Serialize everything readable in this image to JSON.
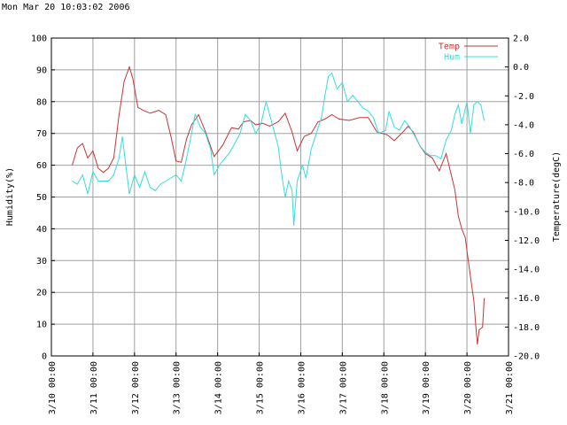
{
  "header": {
    "timestamp": "Mon Mar 20 10:03:02 2006"
  },
  "chart_data": {
    "type": "line",
    "title": "",
    "ylabel_left": "Humidity(%)",
    "ylabel_right": "Temperature(degC)",
    "ylim_left": [
      0,
      100
    ],
    "ylim_right": [
      -20.0,
      2.0
    ],
    "yticks_left": [
      "0",
      "10",
      "20",
      "30",
      "40",
      "50",
      "60",
      "70",
      "80",
      "90",
      "100"
    ],
    "yticks_right": [
      "-20.0",
      "-18.0",
      "-16.0",
      "-14.0",
      "-12.0",
      "-10.0",
      "-8.0",
      "-6.0",
      "-4.0",
      "-2.0",
      "0.0",
      "2.0"
    ],
    "xlim": [
      "2006-03-10 00:00",
      "2006-03-21 00:00"
    ],
    "xticks": [
      "3/10 00:00",
      "3/11 00:00",
      "3/12 00:00",
      "3/13 00:00",
      "3/14 00:00",
      "3/15 00:00",
      "3/16 00:00",
      "3/17 00:00",
      "3/18 00:00",
      "3/19 00:00",
      "3/20 00:00",
      "3/21 00:00"
    ],
    "grid": true,
    "legend": "top-right",
    "series": [
      {
        "name": "Temp",
        "axis": "right",
        "color": "#cc3333",
        "points": [
          [
            "2006-03-10 12:00",
            -6.8
          ],
          [
            "2006-03-10 15:00",
            -5.6
          ],
          [
            "2006-03-10 18:00",
            -5.3
          ],
          [
            "2006-03-10 21:00",
            -6.3
          ],
          [
            "2006-03-11 00:00",
            -5.8
          ],
          [
            "2006-03-11 03:00",
            -7.0
          ],
          [
            "2006-03-11 06:00",
            -7.3
          ],
          [
            "2006-03-11 09:00",
            -7.0
          ],
          [
            "2006-03-11 12:00",
            -6.3
          ],
          [
            "2006-03-11 15:00",
            -3.4
          ],
          [
            "2006-03-11 18:00",
            -1.0
          ],
          [
            "2006-03-11 21:00",
            0.0
          ],
          [
            "2006-03-11 23:00",
            -0.8
          ],
          [
            "2006-03-12 02:00",
            -2.8
          ],
          [
            "2006-03-12 05:00",
            -3.0
          ],
          [
            "2006-03-12 09:00",
            -3.2
          ],
          [
            "2006-03-12 14:00",
            -3.0
          ],
          [
            "2006-03-12 18:00",
            -3.3
          ],
          [
            "2006-03-12 21:00",
            -4.8
          ],
          [
            "2006-03-13 00:00",
            -6.5
          ],
          [
            "2006-03-13 03:00",
            -6.6
          ],
          [
            "2006-03-13 06:00",
            -5.0
          ],
          [
            "2006-03-13 09:00",
            -4.0
          ],
          [
            "2006-03-13 13:00",
            -3.3
          ],
          [
            "2006-03-13 17:00",
            -4.5
          ],
          [
            "2006-03-13 22:00",
            -6.2
          ],
          [
            "2006-03-14 03:00",
            -5.4
          ],
          [
            "2006-03-14 08:00",
            -4.2
          ],
          [
            "2006-03-14 12:00",
            -4.3
          ],
          [
            "2006-03-14 15:00",
            -3.8
          ],
          [
            "2006-03-14 19:00",
            -3.7
          ],
          [
            "2006-03-14 22:00",
            -4.0
          ],
          [
            "2006-03-15 02:00",
            -3.9
          ],
          [
            "2006-03-15 06:00",
            -4.1
          ],
          [
            "2006-03-15 11:00",
            -3.8
          ],
          [
            "2006-03-15 15:00",
            -3.2
          ],
          [
            "2006-03-15 19:00",
            -4.5
          ],
          [
            "2006-03-15 22:00",
            -5.8
          ],
          [
            "2006-03-16 02:00",
            -4.8
          ],
          [
            "2006-03-16 06:00",
            -4.6
          ],
          [
            "2006-03-16 10:00",
            -3.8
          ],
          [
            "2006-03-16 14:00",
            -3.6
          ],
          [
            "2006-03-16 18:00",
            -3.3
          ],
          [
            "2006-03-16 22:00",
            -3.6
          ],
          [
            "2006-03-17 04:00",
            -3.7
          ],
          [
            "2006-03-17 10:00",
            -3.5
          ],
          [
            "2006-03-17 15:00",
            -3.5
          ],
          [
            "2006-03-17 20:00",
            -4.5
          ],
          [
            "2006-03-18 02:00",
            -4.7
          ],
          [
            "2006-03-18 06:00",
            -5.1
          ],
          [
            "2006-03-18 11:00",
            -4.5
          ],
          [
            "2006-03-18 14:00",
            -4.1
          ],
          [
            "2006-03-18 17:00",
            -4.5
          ],
          [
            "2006-03-18 21:00",
            -5.5
          ],
          [
            "2006-03-19 00:00",
            -6.0
          ],
          [
            "2006-03-19 04:00",
            -6.3
          ],
          [
            "2006-03-19 08:00",
            -7.2
          ],
          [
            "2006-03-19 12:00",
            -6.0
          ],
          [
            "2006-03-19 14:00",
            -7.0
          ],
          [
            "2006-03-19 17:00",
            -8.5
          ],
          [
            "2006-03-19 19:00",
            -10.3
          ],
          [
            "2006-03-19 21:00",
            -11.2
          ],
          [
            "2006-03-19 23:00",
            -11.8
          ],
          [
            "2006-03-20 02:00",
            -14.5
          ],
          [
            "2006-03-20 04:00",
            -16.2
          ],
          [
            "2006-03-20 05:00",
            -17.8
          ],
          [
            "2006-03-20 06:00",
            -19.2
          ],
          [
            "2006-03-20 07:00",
            -18.2
          ],
          [
            "2006-03-20 09:00",
            -18.0
          ],
          [
            "2006-03-20 10:00",
            -16.0
          ]
        ]
      },
      {
        "name": "Hum",
        "axis": "left",
        "color": "#33dddd",
        "points": [
          [
            "2006-03-10 12:00",
            55
          ],
          [
            "2006-03-10 15:00",
            54
          ],
          [
            "2006-03-10 18:00",
            57
          ],
          [
            "2006-03-10 21:00",
            51
          ],
          [
            "2006-03-11 00:00",
            58
          ],
          [
            "2006-03-11 03:00",
            55
          ],
          [
            "2006-03-11 06:00",
            55
          ],
          [
            "2006-03-11 09:00",
            55
          ],
          [
            "2006-03-11 12:00",
            57
          ],
          [
            "2006-03-11 15:00",
            62
          ],
          [
            "2006-03-11 17:00",
            69
          ],
          [
            "2006-03-11 19:00",
            60
          ],
          [
            "2006-03-11 21:00",
            51
          ],
          [
            "2006-03-12 00:00",
            57
          ],
          [
            "2006-03-12 03:00",
            53
          ],
          [
            "2006-03-12 06:00",
            58
          ],
          [
            "2006-03-12 09:00",
            53
          ],
          [
            "2006-03-12 12:00",
            52
          ],
          [
            "2006-03-12 15:00",
            54
          ],
          [
            "2006-03-12 18:00",
            55
          ],
          [
            "2006-03-12 21:00",
            56
          ],
          [
            "2006-03-13 00:00",
            57
          ],
          [
            "2006-03-13 03:00",
            55
          ],
          [
            "2006-03-13 06:00",
            62
          ],
          [
            "2006-03-13 09:00",
            70
          ],
          [
            "2006-03-13 11:00",
            76
          ],
          [
            "2006-03-13 14:00",
            72
          ],
          [
            "2006-03-13 17:00",
            70
          ],
          [
            "2006-03-13 20:00",
            65
          ],
          [
            "2006-03-13 22:00",
            57
          ],
          [
            "2006-03-14 01:00",
            60
          ],
          [
            "2006-03-14 04:00",
            62
          ],
          [
            "2006-03-14 07:00",
            64
          ],
          [
            "2006-03-14 10:00",
            67
          ],
          [
            "2006-03-14 13:00",
            70
          ],
          [
            "2006-03-14 16:00",
            76
          ],
          [
            "2006-03-14 19:00",
            74
          ],
          [
            "2006-03-14 22:00",
            70
          ],
          [
            "2006-03-15 01:00",
            73
          ],
          [
            "2006-03-15 04:00",
            80
          ],
          [
            "2006-03-15 06:00",
            76
          ],
          [
            "2006-03-15 09:00",
            70
          ],
          [
            "2006-03-15 11:00",
            66
          ],
          [
            "2006-03-15 13:00",
            57
          ],
          [
            "2006-03-15 15:00",
            50
          ],
          [
            "2006-03-15 17:00",
            55
          ],
          [
            "2006-03-15 19:00",
            52
          ],
          [
            "2006-03-15 20:00",
            41
          ],
          [
            "2006-03-15 22:00",
            55
          ],
          [
            "2006-03-16 01:00",
            60
          ],
          [
            "2006-03-16 03:00",
            56
          ],
          [
            "2006-03-16 06:00",
            65
          ],
          [
            "2006-03-16 09:00",
            70
          ],
          [
            "2006-03-16 12:00",
            75
          ],
          [
            "2006-03-16 14:00",
            82
          ],
          [
            "2006-03-16 16:00",
            88
          ],
          [
            "2006-03-16 18:00",
            89
          ],
          [
            "2006-03-16 21:00",
            84
          ],
          [
            "2006-03-17 00:00",
            86
          ],
          [
            "2006-03-17 03:00",
            80
          ],
          [
            "2006-03-17 06:00",
            82
          ],
          [
            "2006-03-17 09:00",
            80
          ],
          [
            "2006-03-17 12:00",
            78
          ],
          [
            "2006-03-17 15:00",
            77
          ],
          [
            "2006-03-17 18:00",
            75
          ],
          [
            "2006-03-17 21:00",
            70
          ],
          [
            "2006-03-18 01:00",
            71
          ],
          [
            "2006-03-18 03:00",
            77
          ],
          [
            "2006-03-18 06:00",
            72
          ],
          [
            "2006-03-18 09:00",
            71
          ],
          [
            "2006-03-18 12:00",
            74
          ],
          [
            "2006-03-18 15:00",
            72
          ],
          [
            "2006-03-18 18:00",
            69
          ],
          [
            "2006-03-18 21:00",
            66
          ],
          [
            "2006-03-19 00:00",
            64
          ],
          [
            "2006-03-19 03:00",
            63
          ],
          [
            "2006-03-19 06:00",
            63
          ],
          [
            "2006-03-19 09:00",
            62
          ],
          [
            "2006-03-19 12:00",
            68
          ],
          [
            "2006-03-19 15:00",
            71
          ],
          [
            "2006-03-19 17:00",
            76
          ],
          [
            "2006-03-19 19:00",
            79
          ],
          [
            "2006-03-19 21:00",
            73
          ],
          [
            "2006-03-20 00:00",
            80
          ],
          [
            "2006-03-20 02:00",
            70
          ],
          [
            "2006-03-20 04:00",
            79
          ],
          [
            "2006-03-20 06:00",
            80
          ],
          [
            "2006-03-20 08:00",
            79
          ],
          [
            "2006-03-20 10:00",
            74
          ]
        ]
      }
    ]
  }
}
